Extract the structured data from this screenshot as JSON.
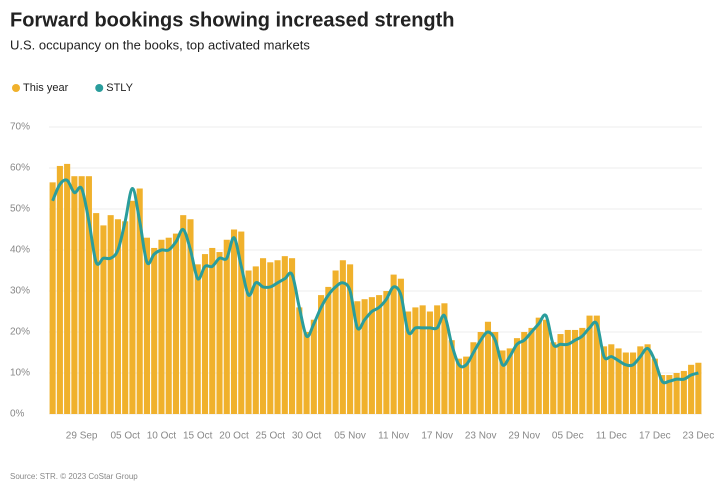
{
  "chart_data": {
    "type": "bar",
    "title": "Forward bookings showing increased strength",
    "subtitle": "U.S. occupancy on the books, top activated markets",
    "source": "Source: STR. © 2023 CoStar Group",
    "legend": "top-left",
    "grid": true,
    "categories": [
      null,
      null,
      null,
      null,
      "29 Sep",
      null,
      null,
      null,
      null,
      null,
      "05 Oct",
      null,
      null,
      null,
      null,
      "10 Oct",
      null,
      null,
      null,
      null,
      "15 Oct",
      null,
      null,
      null,
      null,
      "20 Oct",
      null,
      null,
      null,
      null,
      "25 Oct",
      null,
      null,
      null,
      null,
      "30 Oct",
      null,
      null,
      null,
      null,
      null,
      "05 Nov",
      null,
      null,
      null,
      null,
      null,
      "11 Nov",
      null,
      null,
      null,
      null,
      null,
      "17 Nov",
      null,
      null,
      null,
      null,
      null,
      "23 Nov",
      null,
      null,
      null,
      null,
      null,
      "29 Nov",
      null,
      null,
      null,
      null,
      null,
      "05 Dec",
      null,
      null,
      null,
      null,
      null,
      "11 Dec",
      null,
      null,
      null,
      null,
      null,
      "17 Dec",
      null,
      null,
      null,
      null,
      null,
      "23 Dec"
    ],
    "ylim": [
      0,
      70
    ],
    "yticks": [
      {
        "value": 0,
        "label": "0%"
      },
      {
        "value": 10,
        "label": "10%"
      },
      {
        "value": 20,
        "label": "20%"
      },
      {
        "value": 30,
        "label": "30%"
      },
      {
        "value": 40,
        "label": "40%"
      },
      {
        "value": 50,
        "label": "50%"
      },
      {
        "value": 60,
        "label": "60%"
      },
      {
        "value": 70,
        "label": "70%"
      }
    ],
    "series": [
      {
        "name": "This year",
        "type": "bar",
        "color": "#f0b12c",
        "values": [
          56.5,
          60.5,
          61,
          58,
          58,
          58,
          49,
          46,
          48.5,
          47.5,
          47,
          52,
          55,
          43,
          40.5,
          42.5,
          43,
          44,
          48.5,
          47.5,
          36.5,
          39,
          40.5,
          39.5,
          42.5,
          45,
          44.5,
          35,
          36,
          38,
          37,
          37.5,
          38.5,
          38,
          26,
          20,
          23,
          29,
          31,
          35,
          37.5,
          36.5,
          27.5,
          28,
          28.5,
          29,
          30,
          34,
          33,
          25,
          26,
          26.5,
          25,
          26.5,
          27,
          18,
          13.5,
          14,
          17.5,
          20,
          22.5,
          20,
          15.5,
          16,
          18.5,
          20,
          21,
          23.5,
          23,
          17.5,
          19.5,
          20.5,
          20.5,
          21,
          24,
          24,
          16.5,
          17,
          16,
          15,
          15,
          16.5,
          17,
          13.5,
          9.5,
          9.5,
          10,
          10.5,
          12,
          12.5
        ]
      },
      {
        "name": "STLY",
        "type": "line",
        "color": "#2a9d9c",
        "values": [
          52,
          56,
          57,
          54,
          55,
          47,
          37,
          38,
          38,
          40,
          47,
          55,
          47,
          37,
          39,
          40,
          40,
          42,
          45,
          40,
          33,
          36,
          36,
          38,
          38,
          43,
          36,
          29,
          32,
          31,
          31,
          32,
          33,
          34,
          26,
          19,
          22,
          26,
          29,
          31,
          32,
          30,
          21,
          23,
          25,
          26,
          28,
          31,
          29,
          20,
          21,
          21,
          21,
          21,
          24,
          17,
          12,
          12,
          15,
          18,
          20,
          18,
          12,
          14,
          17,
          18,
          20,
          22,
          24,
          17,
          17,
          17,
          18,
          19,
          21,
          22,
          14,
          14,
          13,
          12,
          12,
          14,
          16,
          13,
          8,
          8,
          8.5,
          8.5,
          9.5,
          10
        ]
      }
    ]
  }
}
